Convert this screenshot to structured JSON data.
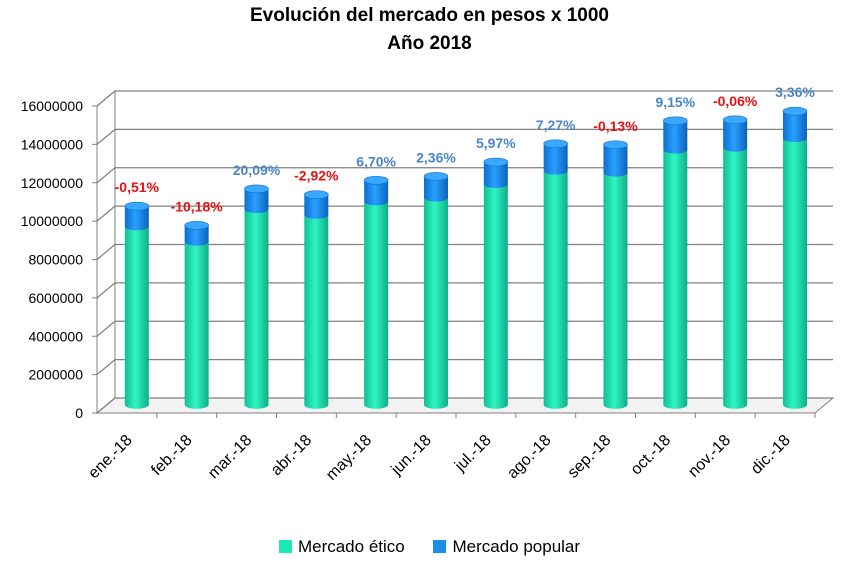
{
  "chart_data": {
    "type": "bar",
    "stacked": true,
    "three_d": true,
    "title": "Evolución del mercado en pesos x 1000",
    "subtitle": "Año 2018",
    "xlabel": "",
    "ylabel": "",
    "ylim": [
      0,
      16000000
    ],
    "yticks": [
      "0",
      "2000000",
      "4000000",
      "6000000",
      "8000000",
      "10000000",
      "12000000",
      "14000000",
      "16000000"
    ],
    "grid": true,
    "legend_position": "bottom",
    "categories": [
      "ene.-18",
      "feb.-18",
      "mar.-18",
      "abr.-18",
      "may.-18",
      "jun.-18",
      "jul.-18",
      "ago.-18",
      "sep.-18",
      "oct.-18",
      "nov.-18",
      "dic.-18"
    ],
    "series": [
      {
        "name": "Mercado ético",
        "color": "#1de9b6",
        "values": [
          9300000,
          8500000,
          10200000,
          9900000,
          10600000,
          10800000,
          11500000,
          12200000,
          12100000,
          13300000,
          13400000,
          13900000
        ]
      },
      {
        "name": "Mercado popular",
        "color": "#1a8fe8",
        "values": [
          1050000,
          850000,
          1050000,
          1050000,
          1100000,
          1100000,
          1150000,
          1400000,
          1450000,
          1500000,
          1450000,
          1400000
        ]
      }
    ],
    "annotations": [
      "-0,51%",
      "-10,18%",
      "20,09%",
      "-2,92%",
      "6,70%",
      "2,36%",
      "5,97%",
      "7,27%",
      "-0,13%",
      "9,15%",
      "-0,06%",
      "3,36%"
    ],
    "annotation_colors": [
      "#e81010",
      "#e81010",
      "#4a86c8",
      "#e81010",
      "#4a86c8",
      "#4a86c8",
      "#4a86c8",
      "#4a86c8",
      "#e81010",
      "#4a86c8",
      "#e81010",
      "#4a86c8"
    ]
  }
}
